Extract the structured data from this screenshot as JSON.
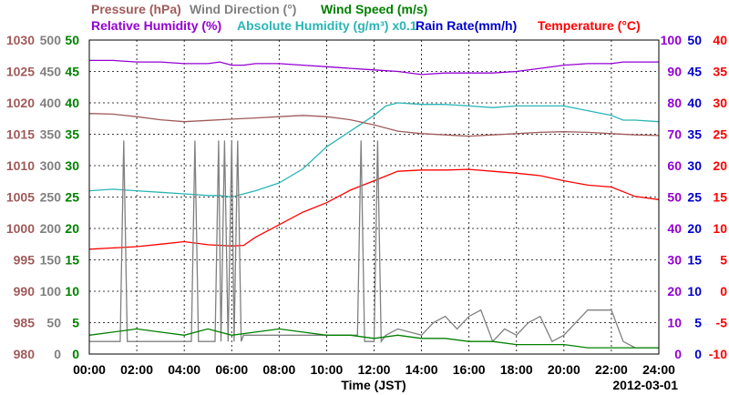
{
  "chart_data": {
    "type": "line",
    "legend": {
      "pressure": "Pressure (hPa)",
      "wind_direction": "Wind Direction (°)",
      "wind_speed": "Wind Speed (m/s)",
      "relative_humidity": "Relative Humidity (%)",
      "absolute_humidity": "Absolute Humidity (g/m³) x0.1",
      "rain_rate": "Rain Rate(mm/h)",
      "temperature": "Temperature (°C)"
    },
    "xlabel": "Time (JST)",
    "date": "2012-03-01",
    "x_ticks": [
      "00:00",
      "02:00",
      "04:00",
      "06:00",
      "08:00",
      "10:00",
      "12:00",
      "14:00",
      "16:00",
      "18:00",
      "20:00",
      "22:00",
      "24:00"
    ],
    "grid": true,
    "axes": {
      "pressure": {
        "ticks": [
          980,
          985,
          990,
          995,
          1000,
          1005,
          1010,
          1015,
          1020,
          1025,
          1030
        ],
        "ylim": [
          980,
          1030
        ],
        "color": "#a05a5a"
      },
      "wind_direction": {
        "ticks": [
          0,
          50,
          100,
          150,
          200,
          250,
          300,
          350,
          400,
          450,
          500
        ],
        "ylim": [
          0,
          500
        ],
        "color": "#808080"
      },
      "wind_speed": {
        "ticks": [
          0,
          5,
          10,
          15,
          20,
          25,
          30,
          35,
          40,
          45,
          50
        ],
        "ylim": [
          0,
          50
        ],
        "color": "#008000"
      },
      "relative_humidity": {
        "ticks": [
          0,
          10,
          20,
          30,
          40,
          50,
          60,
          70,
          80,
          90,
          100
        ],
        "ylim": [
          0,
          100
        ],
        "color": "#9400d3"
      },
      "rain_rate": {
        "ticks": [
          0,
          5,
          10,
          15,
          20,
          25,
          30,
          35,
          40,
          45,
          50
        ],
        "ylim": [
          0,
          50
        ],
        "color": "#0000cd"
      },
      "temperature": {
        "ticks": [
          -10,
          -5,
          0,
          5,
          10,
          15,
          20,
          25,
          30,
          35,
          40
        ],
        "ylim": [
          -10,
          40
        ],
        "color": "#ff0000"
      }
    },
    "series": [
      {
        "name": "Relative Humidity (%)",
        "axis": "relative_humidity",
        "color": "#9400d3",
        "x": [
          0,
          1,
          2,
          3,
          4,
          5,
          5.5,
          6,
          6.5,
          7,
          8,
          9,
          10,
          11,
          12,
          13,
          14,
          15,
          16,
          17,
          18,
          19,
          20,
          21,
          22,
          22.5,
          23,
          24
        ],
        "y": [
          93.5,
          93.5,
          93,
          93,
          92.5,
          92.5,
          93,
          92,
          92,
          92.5,
          92.5,
          92,
          91.5,
          91,
          90.5,
          90,
          89,
          89.5,
          89.5,
          89.5,
          90,
          91,
          92,
          92.5,
          92.5,
          93,
          93,
          93
        ]
      },
      {
        "name": "Absolute Humidity (g/m³) x0.1",
        "axis": "relative_humidity",
        "color": "#2ab5b5",
        "x": [
          0,
          1,
          2,
          3,
          4,
          5,
          5.5,
          6,
          6.5,
          7,
          8,
          9,
          10,
          11,
          12,
          12.5,
          13,
          14,
          15,
          16,
          17,
          18,
          19,
          20,
          21,
          22,
          22.5,
          23,
          24
        ],
        "y": [
          52,
          52.5,
          52,
          51.5,
          51,
          50.5,
          50.5,
          50,
          51,
          52,
          54.5,
          59,
          66,
          71,
          76,
          79,
          80,
          79.5,
          79.5,
          79,
          78.5,
          79,
          79,
          79,
          77.5,
          76,
          74.5,
          74.5,
          74
        ]
      },
      {
        "name": "Pressure (hPa)",
        "axis": "pressure",
        "color": "#a05a5a",
        "x": [
          0,
          1,
          2,
          3,
          4,
          5,
          6,
          7,
          8,
          9,
          10,
          11,
          12,
          13,
          14,
          15,
          16,
          17,
          18,
          19,
          20,
          21,
          22,
          23,
          24
        ],
        "y": [
          1018.3,
          1018.2,
          1017.8,
          1017.3,
          1017,
          1017.2,
          1017.4,
          1017.6,
          1017.8,
          1018,
          1017.8,
          1017.3,
          1016.5,
          1015.5,
          1015.1,
          1014.9,
          1014.7,
          1014.9,
          1015.1,
          1015.3,
          1015.4,
          1015.3,
          1015.1,
          1014.9,
          1014.8
        ]
      },
      {
        "name": "Temperature (°C)",
        "axis": "temperature",
        "color": "#ff0000",
        "x": [
          0,
          1,
          2,
          3,
          4,
          5,
          6,
          6.5,
          7,
          8,
          9,
          10,
          11,
          12,
          13,
          14,
          15,
          16,
          17,
          18,
          19,
          20,
          21,
          22,
          23,
          24
        ],
        "y": [
          6.7,
          6.9,
          7.1,
          7.5,
          7.9,
          7.4,
          7.2,
          7.3,
          8.6,
          10.6,
          12.6,
          14.1,
          16.1,
          17.6,
          19.1,
          19.3,
          19.3,
          19.4,
          19.1,
          18.8,
          18.4,
          17.6,
          16.9,
          16.6,
          15.1,
          14.6
        ]
      },
      {
        "name": "Wind Direction (°)",
        "axis": "wind_direction",
        "color": "#808080",
        "x": [
          0,
          1.3,
          1.45,
          1.6,
          4.3,
          4.45,
          4.6,
          5.3,
          5.45,
          5.55,
          5.7,
          5.85,
          6,
          6.1,
          6.25,
          6.4,
          6.5,
          8,
          10,
          11.3,
          11.45,
          11.6,
          12,
          12.15,
          12.3,
          12.5,
          13,
          14,
          14.5,
          15,
          15.5,
          16,
          16.5,
          17,
          17.5,
          18,
          18.5,
          19,
          19.5,
          20,
          21,
          22,
          22.5,
          23,
          24
        ],
        "y": [
          20,
          20,
          340,
          20,
          20,
          340,
          20,
          20,
          340,
          20,
          340,
          20,
          340,
          20,
          340,
          20,
          30,
          30,
          30,
          30,
          340,
          20,
          20,
          340,
          20,
          30,
          40,
          30,
          50,
          60,
          40,
          60,
          70,
          20,
          40,
          30,
          50,
          60,
          20,
          30,
          70,
          70,
          20,
          10,
          10
        ]
      },
      {
        "name": "Wind Speed (m/s)",
        "axis": "wind_speed",
        "color": "#008000",
        "x": [
          0,
          1,
          2,
          3,
          4,
          5,
          6,
          7,
          8,
          9,
          10,
          11,
          12,
          13,
          14,
          15,
          16,
          17,
          18,
          19,
          20,
          21,
          22,
          23,
          24
        ],
        "y": [
          3,
          3.5,
          4,
          3.5,
          3,
          4,
          3,
          3.5,
          4,
          3.5,
          3,
          3,
          2.5,
          3,
          2.5,
          2.5,
          2,
          2,
          1.5,
          1.5,
          1.5,
          1,
          1,
          1,
          1
        ]
      }
    ]
  }
}
